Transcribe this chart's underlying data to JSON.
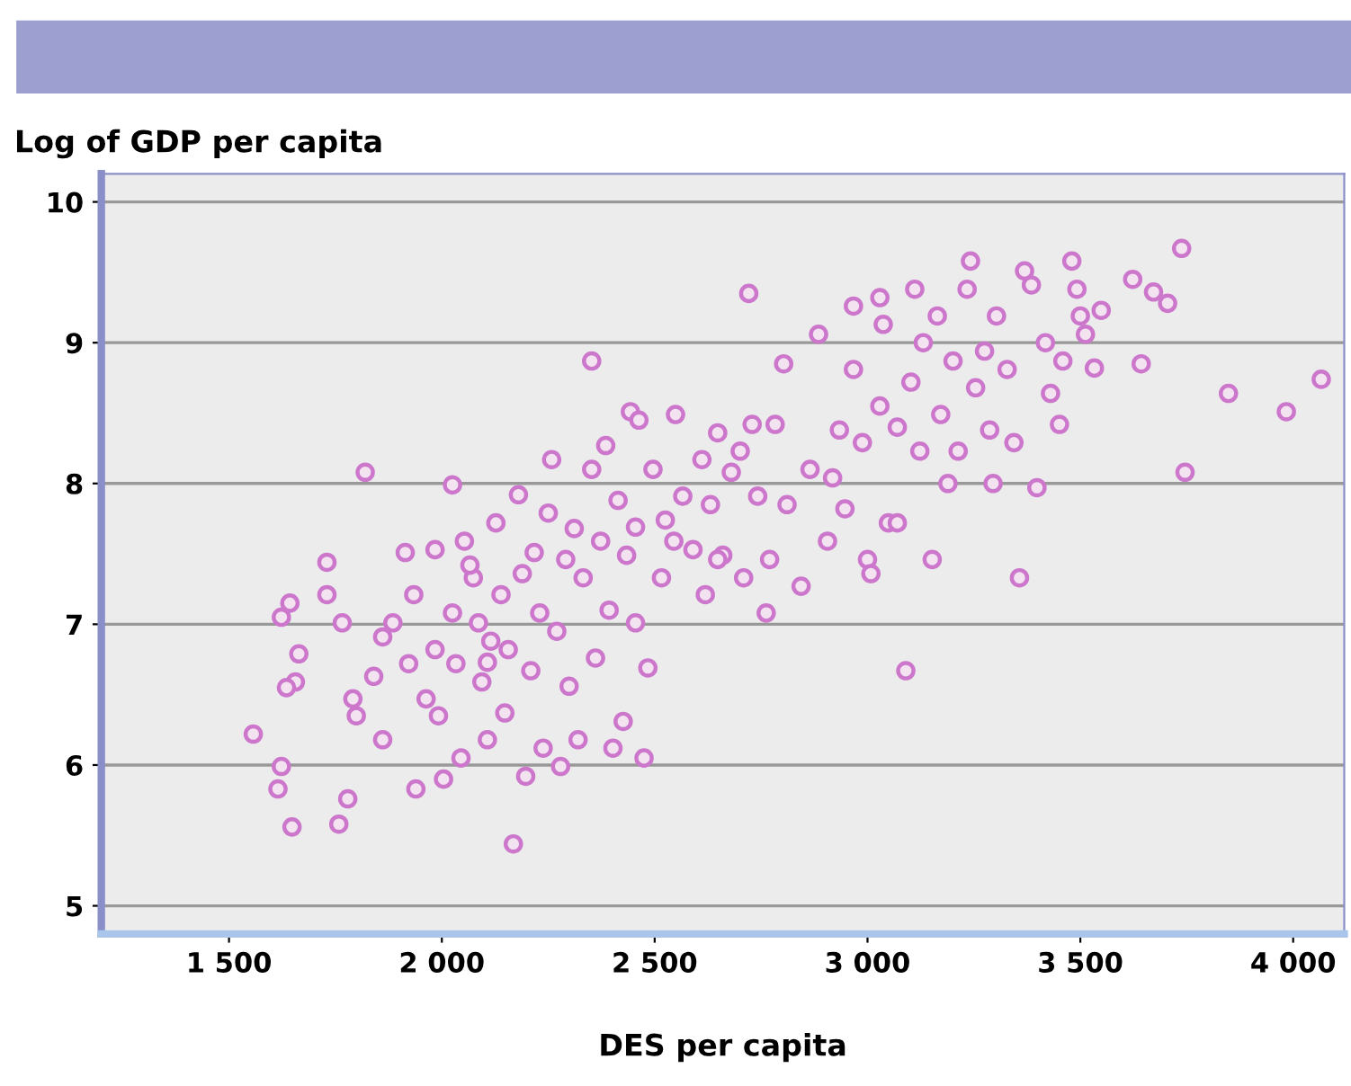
{
  "chart_data": {
    "type": "scatter",
    "xlabel": "DES per capita",
    "ylabel": "Log of GDP per capita",
    "xlim": [
      1200,
      4120
    ],
    "ylim": [
      4.8,
      10.2
    ],
    "xticks": [
      {
        "value": 1500,
        "label": "1 500"
      },
      {
        "value": 2000,
        "label": "2 000"
      },
      {
        "value": 2500,
        "label": "2 500"
      },
      {
        "value": 3000,
        "label": "3 000"
      },
      {
        "value": 3500,
        "label": "3 500"
      },
      {
        "value": 4000,
        "label": "4 000"
      }
    ],
    "yticks": [
      5,
      6,
      7,
      8,
      9,
      10
    ],
    "grid": "y",
    "marker": "circle",
    "series": [
      {
        "color": "#cc77cc",
        "x": [
          1557,
          1623,
          1623,
          1615,
          1648,
          1656,
          1635,
          1664,
          1643,
          1730,
          1730,
          1766,
          1758,
          1779,
          1820,
          1791,
          1799,
          1840,
          1861,
          1861,
          1885,
          1914,
          1922,
          1939,
          1963,
          1984,
          1992,
          2004,
          2025,
          2025,
          2033,
          2045,
          2053,
          2074,
          2086,
          2094,
          2107,
          2115,
          2127,
          2139,
          2148,
          2156,
          2168,
          2180,
          2189,
          2197,
          2209,
          2217,
          2230,
          2238,
          2250,
          2258,
          2270,
          2279,
          2291,
          2299,
          2311,
          2320,
          2332,
          2352,
          2352,
          2361,
          2373,
          2385,
          2393,
          2402,
          2414,
          2426,
          2434,
          2443,
          2455,
          2455,
          2475,
          2484,
          2463,
          2496,
          2516,
          2525,
          2545,
          2549,
          2566,
          2590,
          2611,
          2619,
          2631,
          2648,
          2660,
          2680,
          2701,
          2709,
          2721,
          2729,
          2742,
          2762,
          2770,
          2783,
          2803,
          2811,
          2844,
          2865,
          2885,
          2906,
          2918,
          2934,
          2947,
          2967,
          2967,
          2988,
          3000,
          3008,
          3029,
          3029,
          3037,
          3049,
          3070,
          3090,
          3102,
          3111,
          3123,
          3131,
          3152,
          3164,
          3172,
          3189,
          3201,
          3213,
          3234,
          3242,
          3254,
          3275,
          3287,
          3295,
          3303,
          3328,
          3344,
          3357,
          3369,
          3385,
          3398,
          3418,
          3430,
          3451,
          3459,
          3480,
          3492,
          3500,
          3512,
          3533,
          3549,
          3623,
          3643,
          3672,
          3705,
          3738,
          3746,
          3848,
          3984,
          4066,
          3070,
          2648,
          2066,
          1984,
          1934,
          2107
        ],
        "values": [
          6.22,
          7.05,
          5.99,
          5.83,
          5.56,
          6.59,
          6.55,
          6.79,
          7.15,
          7.44,
          7.21,
          7.01,
          5.58,
          5.76,
          8.08,
          6.47,
          6.35,
          6.63,
          6.91,
          6.18,
          7.01,
          7.51,
          6.72,
          5.83,
          6.47,
          7.53,
          6.35,
          5.9,
          7.99,
          7.08,
          6.72,
          6.05,
          7.59,
          7.33,
          7.01,
          6.59,
          6.18,
          6.88,
          7.72,
          7.21,
          6.37,
          6.82,
          5.44,
          7.92,
          7.36,
          5.92,
          6.67,
          7.51,
          7.08,
          6.12,
          7.79,
          8.17,
          6.95,
          5.99,
          7.46,
          6.56,
          7.68,
          6.18,
          7.33,
          8.87,
          8.1,
          6.76,
          7.59,
          8.27,
          7.1,
          6.12,
          7.88,
          6.31,
          7.49,
          8.51,
          7.01,
          7.69,
          6.05,
          6.69,
          8.45,
          8.1,
          7.33,
          7.74,
          7.59,
          8.49,
          7.91,
          7.53,
          8.17,
          7.21,
          7.85,
          8.36,
          7.49,
          8.08,
          8.23,
          7.33,
          9.35,
          8.42,
          7.91,
          7.08,
          7.46,
          8.42,
          8.85,
          7.85,
          7.27,
          8.1,
          9.06,
          7.59,
          8.04,
          8.38,
          7.82,
          9.26,
          8.81,
          8.29,
          7.46,
          7.36,
          9.32,
          8.55,
          9.13,
          7.72,
          8.4,
          6.67,
          8.72,
          9.38,
          8.23,
          9.0,
          7.46,
          9.19,
          8.49,
          8.0,
          8.87,
          8.23,
          9.38,
          9.58,
          8.68,
          8.94,
          8.38,
          8.0,
          9.19,
          8.81,
          8.29,
          7.33,
          9.51,
          9.41,
          7.97,
          9.0,
          8.64,
          8.42,
          8.87,
          9.58,
          9.38,
          9.19,
          9.06,
          8.82,
          9.23,
          9.45,
          8.85,
          9.36,
          9.28,
          9.67,
          8.08,
          8.64,
          8.51,
          8.74,
          7.72,
          7.46,
          7.42,
          6.82,
          7.21,
          6.73
        ]
      }
    ]
  }
}
